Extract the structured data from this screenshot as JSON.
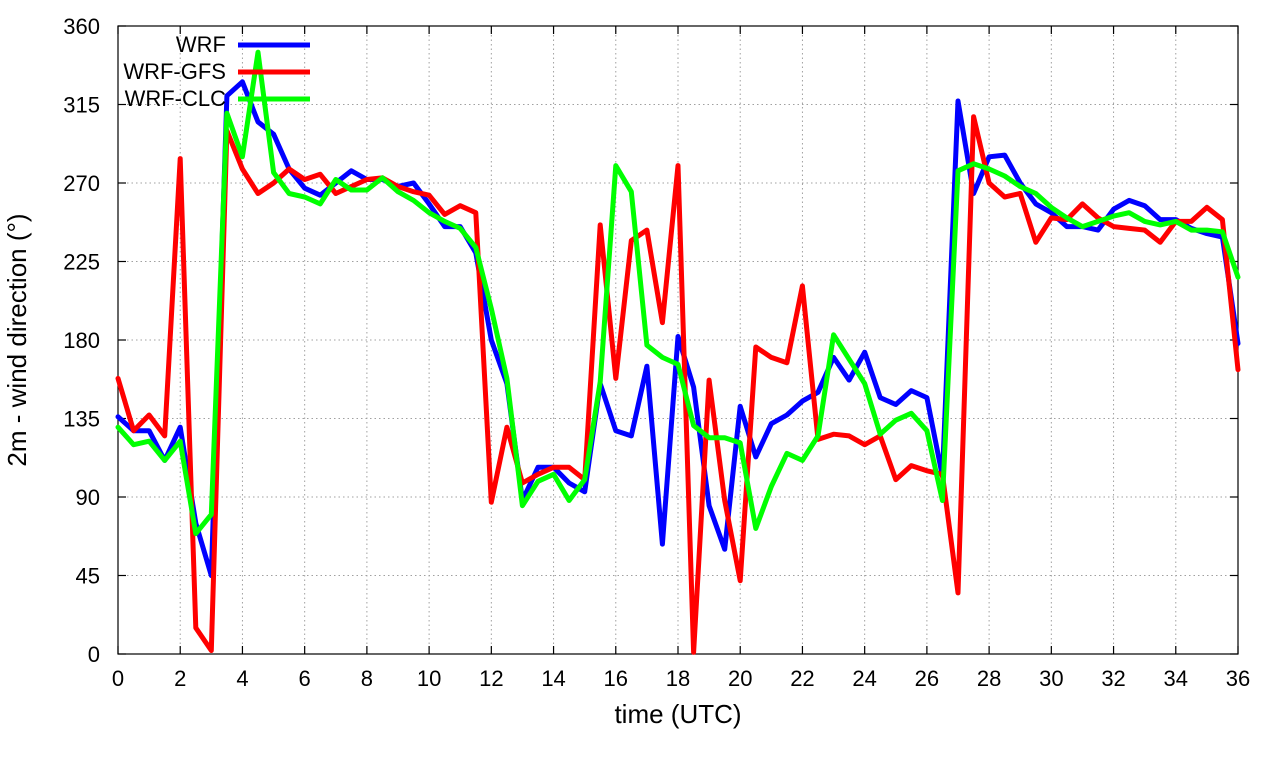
{
  "chart_data": {
    "type": "line",
    "xlabel": "time (UTC)",
    "ylabel": "2m - wind direction (°)",
    "xlim": [
      0,
      36
    ],
    "ylim": [
      0,
      360
    ],
    "xticks": [
      0,
      2,
      4,
      6,
      8,
      10,
      12,
      14,
      16,
      18,
      20,
      22,
      24,
      26,
      28,
      30,
      32,
      34,
      36
    ],
    "yticks": [
      0,
      45,
      90,
      135,
      180,
      225,
      270,
      315,
      360
    ],
    "grid": true,
    "legend_position": "top-left",
    "series": [
      {
        "name": "WRF",
        "color": "#0000ff",
        "x": [
          0,
          0.5,
          1,
          1.5,
          2,
          2.5,
          3,
          3.5,
          4,
          4.5,
          5,
          5.5,
          6,
          6.5,
          7,
          7.5,
          8,
          8.5,
          9,
          9.5,
          10,
          10.5,
          11,
          11.5,
          12,
          12.5,
          13,
          13.5,
          14,
          14.5,
          15,
          15.5,
          16,
          16.5,
          17,
          17.5,
          18,
          18.5,
          19,
          19.5,
          20,
          20.5,
          21,
          21.5,
          22,
          22.5,
          23,
          23.5,
          24,
          24.5,
          25,
          25.5,
          26,
          26.5,
          27,
          27.5,
          28,
          28.5,
          29,
          29.5,
          30,
          30.5,
          31,
          31.5,
          32,
          32.5,
          33,
          33.5,
          34,
          34.5,
          35,
          35.5,
          36
        ],
        "values": [
          136,
          128,
          128,
          111,
          130,
          75,
          45,
          320,
          328,
          305,
          298,
          278,
          267,
          263,
          270,
          277,
          272,
          272,
          268,
          270,
          258,
          245,
          245,
          230,
          180,
          155,
          88,
          107,
          107,
          98,
          93,
          155,
          128,
          125,
          165,
          63,
          182,
          153,
          85,
          60,
          142,
          113,
          132,
          137,
          145,
          150,
          170,
          157,
          173,
          147,
          143,
          151,
          147,
          102,
          317,
          264,
          285,
          286,
          270,
          258,
          253,
          245,
          245,
          243,
          255,
          260,
          257,
          249,
          249,
          244,
          241,
          239,
          178
        ]
      },
      {
        "name": "WRF-GFS",
        "color": "#ff0000",
        "x": [
          0,
          0.5,
          1,
          1.5,
          2,
          2.5,
          3,
          3.5,
          4,
          4.5,
          5,
          5.5,
          6,
          6.5,
          7,
          7.5,
          8,
          8.5,
          9,
          9.5,
          10,
          10.5,
          11,
          11.5,
          12,
          12.5,
          13,
          13.5,
          14,
          14.5,
          15,
          15.5,
          16,
          16.5,
          17,
          17.5,
          18,
          18.5,
          19,
          19.5,
          20,
          20.5,
          21,
          21.5,
          22,
          22.5,
          23,
          23.5,
          24,
          24.5,
          25,
          25.5,
          26,
          26.5,
          27,
          27.5,
          28,
          28.5,
          29,
          29.5,
          30,
          30.5,
          31,
          31.5,
          32,
          32.5,
          33,
          33.5,
          34,
          34.5,
          35,
          35.5,
          36
        ],
        "values": [
          158,
          128,
          137,
          125,
          284,
          15,
          2,
          300,
          278,
          264,
          270,
          278,
          272,
          275,
          264,
          268,
          272,
          273,
          268,
          265,
          263,
          252,
          257,
          253,
          87,
          130,
          98,
          103,
          107,
          107,
          100,
          246,
          158,
          237,
          243,
          190,
          280,
          1,
          157,
          88,
          42,
          176,
          170,
          167,
          211,
          123,
          126,
          125,
          120,
          125,
          100,
          108,
          105,
          103,
          35,
          308,
          270,
          262,
          264,
          236,
          250,
          249,
          258,
          250,
          245,
          244,
          243,
          236,
          248,
          248,
          256,
          249,
          163
        ]
      },
      {
        "name": "WRF-CLC",
        "color": "#00ff00",
        "x": [
          0,
          0.5,
          1,
          1.5,
          2,
          2.5,
          3,
          3.5,
          4,
          4.5,
          5,
          5.5,
          6,
          6.5,
          7,
          7.5,
          8,
          8.5,
          9,
          9.5,
          10,
          10.5,
          11,
          11.5,
          12,
          12.5,
          13,
          13.5,
          14,
          14.5,
          15,
          15.5,
          16,
          16.5,
          17,
          17.5,
          18,
          18.5,
          19,
          19.5,
          20,
          20.5,
          21,
          21.5,
          22,
          22.5,
          23,
          23.5,
          24,
          24.5,
          25,
          25.5,
          26,
          26.5,
          27,
          27.5,
          28,
          28.5,
          29,
          29.5,
          30,
          30.5,
          31,
          31.5,
          32,
          32.5,
          33,
          33.5,
          34,
          34.5,
          35,
          35.5,
          36
        ],
        "values": [
          130,
          120,
          122,
          111,
          122,
          69,
          80,
          310,
          285,
          345,
          276,
          264,
          262,
          258,
          272,
          266,
          266,
          273,
          265,
          260,
          253,
          248,
          244,
          233,
          198,
          158,
          85,
          99,
          103,
          88,
          100,
          156,
          280,
          265,
          177,
          170,
          166,
          131,
          124,
          124,
          121,
          72,
          96,
          115,
          111,
          125,
          183,
          169,
          155,
          126,
          134,
          138,
          128,
          88,
          277,
          281,
          278,
          274,
          268,
          264,
          256,
          250,
          245,
          248,
          251,
          253,
          248,
          246,
          248,
          243,
          243,
          242,
          216
        ]
      }
    ]
  }
}
